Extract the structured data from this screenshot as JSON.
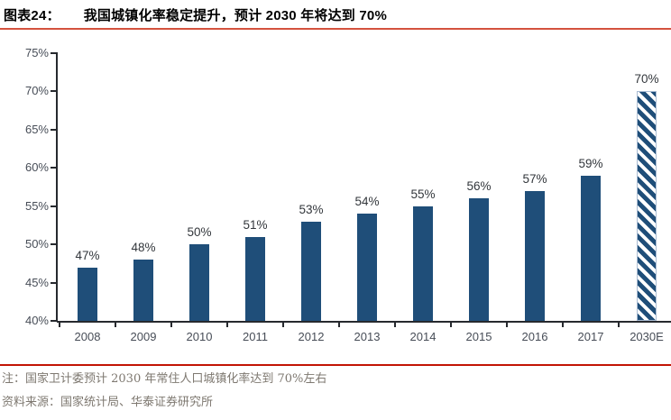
{
  "header": {
    "label": "图表24：",
    "title": "我国城镇化率稳定提升，预计 2030 年将达到 70%"
  },
  "chart_data": {
    "type": "bar",
    "title": "我国城镇化率稳定提升，预计 2030 年将达到 70%",
    "categories": [
      "2008",
      "2009",
      "2010",
      "2011",
      "2012",
      "2013",
      "2014",
      "2015",
      "2016",
      "2017",
      "2030E"
    ],
    "values": [
      47,
      48,
      50,
      51,
      53,
      54,
      55,
      56,
      57,
      59,
      70
    ],
    "data_labels": [
      "47%",
      "48%",
      "50%",
      "51%",
      "53%",
      "54%",
      "55%",
      "56%",
      "57%",
      "59%",
      "70%"
    ],
    "unit": "%",
    "xlabel": "",
    "ylabel": "",
    "ylim": [
      40,
      75
    ],
    "ytick_step": 5,
    "yticks": [
      "40%",
      "45%",
      "50%",
      "55%",
      "60%",
      "65%",
      "70%",
      "75%"
    ],
    "grid": false,
    "legend": false,
    "bar_color": "#1F4E79",
    "forecast_index": 10,
    "forecast_style": "hatched"
  },
  "footer": {
    "note": "注：国家卫计委预计 2030 年常住人口城镇化率达到 70%左右",
    "source": "资料来源：国家统计局、华泰证券研究所"
  },
  "colors": {
    "bar": "#1F4E79",
    "hatch_border": "#A9BCD3",
    "title_rule": "#D4523E",
    "footer_rule": "#C21404",
    "note_text": "#7E7870",
    "axis": "#26292E",
    "tick_text": "#474D57",
    "value_label_text": "#33373C"
  }
}
